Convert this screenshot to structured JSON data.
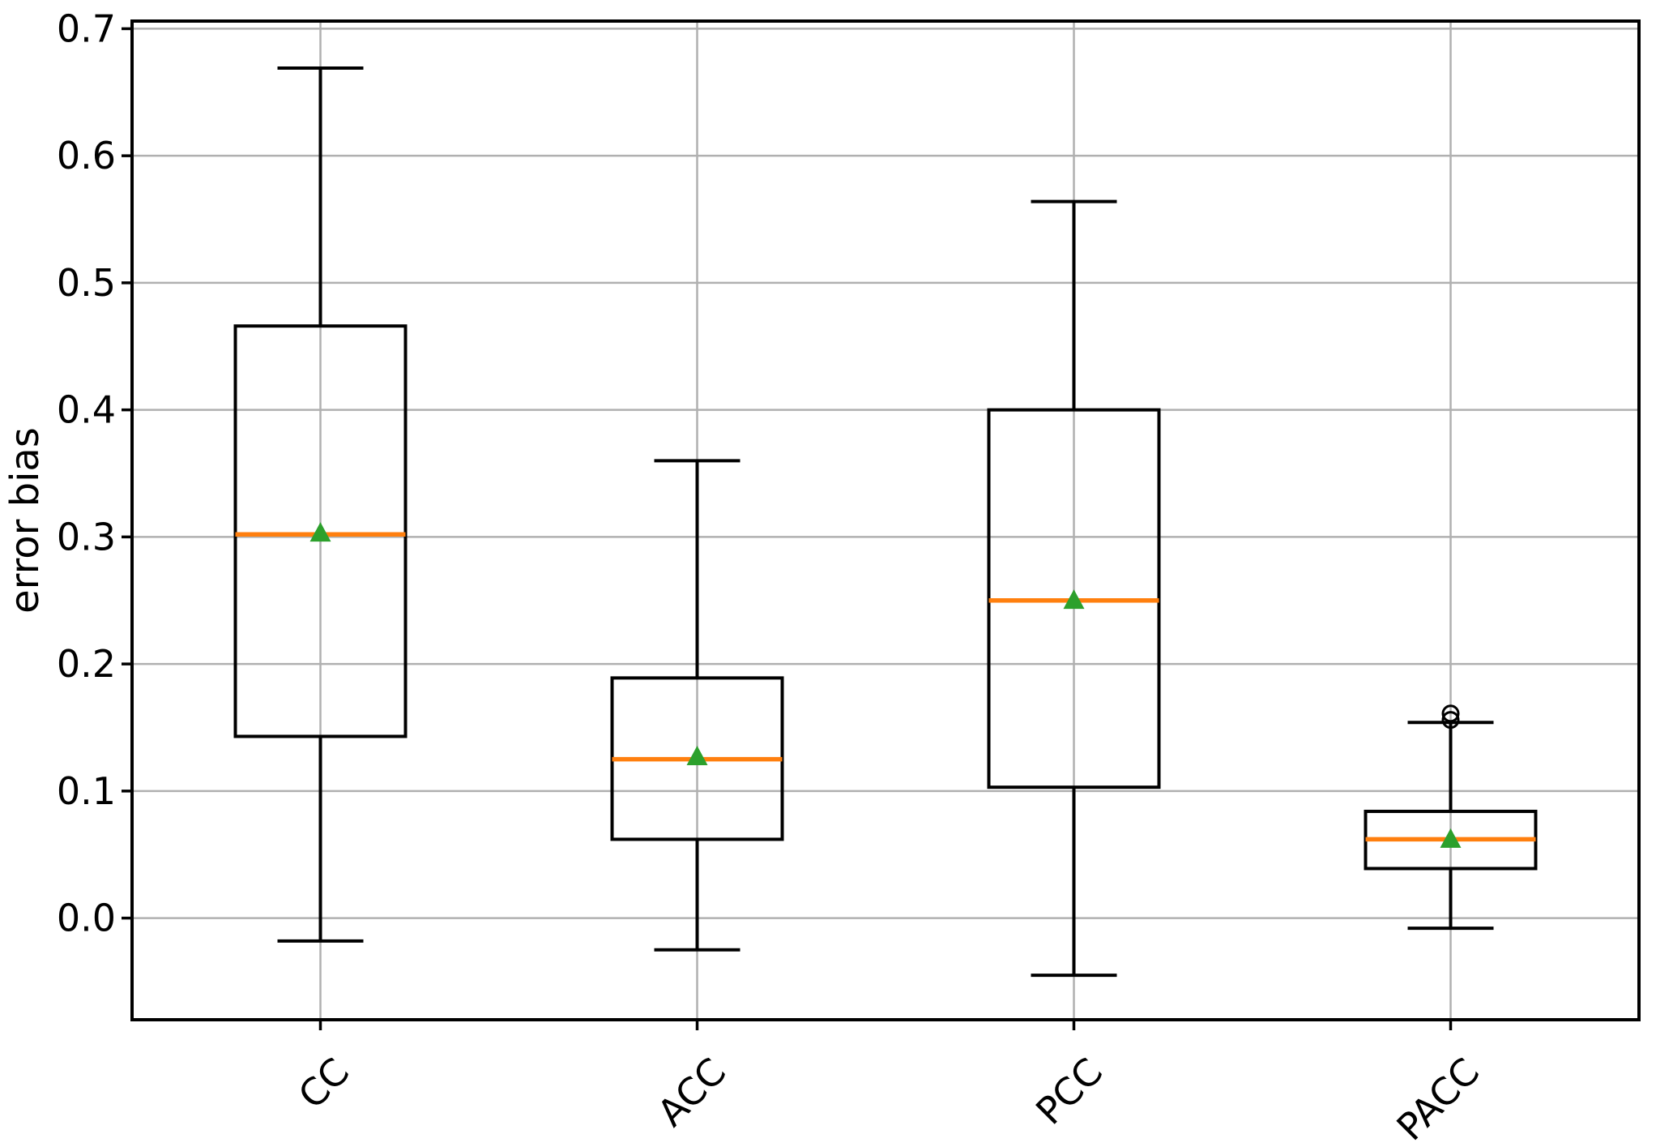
{
  "chart_data": {
    "type": "boxplot",
    "title": "",
    "xlabel": "",
    "ylabel": "error bias",
    "categories": [
      "CC",
      "ACC",
      "PCC",
      "PACC"
    ],
    "ylim": [
      -0.08,
      0.706
    ],
    "yticks": [
      0.0,
      0.1,
      0.2,
      0.3,
      0.4,
      0.5,
      0.6,
      0.7
    ],
    "ytick_labels": [
      "0.0",
      "0.1",
      "0.2",
      "0.3",
      "0.4",
      "0.5",
      "0.6",
      "0.7"
    ],
    "xtick_rotation_deg": 45,
    "grid": true,
    "legend": "none",
    "series": [
      {
        "name": "CC",
        "whislo": -0.018,
        "q1": 0.143,
        "med": 0.302,
        "mean": 0.304,
        "q3": 0.466,
        "whishi": 0.669,
        "outliers": []
      },
      {
        "name": "ACC",
        "whislo": -0.025,
        "q1": 0.062,
        "med": 0.125,
        "mean": 0.128,
        "q3": 0.189,
        "whishi": 0.36,
        "outliers": []
      },
      {
        "name": "PCC",
        "whislo": -0.045,
        "q1": 0.103,
        "med": 0.25,
        "mean": 0.251,
        "q3": 0.4,
        "whishi": 0.564,
        "outliers": []
      },
      {
        "name": "PACC",
        "whislo": -0.008,
        "q1": 0.039,
        "med": 0.062,
        "mean": 0.063,
        "q3": 0.084,
        "whishi": 0.154,
        "outliers": [
          0.161,
          0.156
        ]
      }
    ],
    "colors": {
      "box_line": "#000000",
      "median_line": "#ff7f0e",
      "mean_marker": "#2ca02c",
      "grid_line": "#b0b0b0",
      "spine": "#000000",
      "background": "#ffffff"
    }
  }
}
